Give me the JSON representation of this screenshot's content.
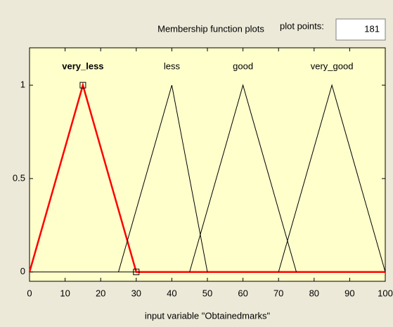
{
  "ui": {
    "title": "Membership function plots",
    "plot_points_label": "plot points:",
    "plot_points": 181
  },
  "chart_data": {
    "type": "line",
    "xlabel": "input variable \"Obtainedmarks\"",
    "series": [
      {
        "name": "very_less",
        "color": "#ff0000",
        "x": [
          0,
          15,
          30,
          100
        ],
        "values": [
          0,
          1,
          0,
          0
        ]
      },
      {
        "name": "less",
        "color": "#000000",
        "x": [
          25,
          40,
          50
        ],
        "values": [
          0,
          1,
          0
        ]
      },
      {
        "name": "good",
        "color": "#000000",
        "x": [
          45,
          60,
          75
        ],
        "values": [
          0,
          1,
          0
        ]
      },
      {
        "name": "very_good",
        "color": "#000000",
        "x": [
          70,
          85,
          100
        ],
        "values": [
          0,
          1,
          0
        ]
      }
    ],
    "xlim": [
      0,
      100
    ],
    "xticks": [
      0,
      10,
      20,
      30,
      40,
      50,
      60,
      70,
      80,
      90,
      100
    ],
    "ylim": [
      -0.05,
      1.2
    ],
    "yticks": [
      0,
      0.5,
      1
    ]
  }
}
